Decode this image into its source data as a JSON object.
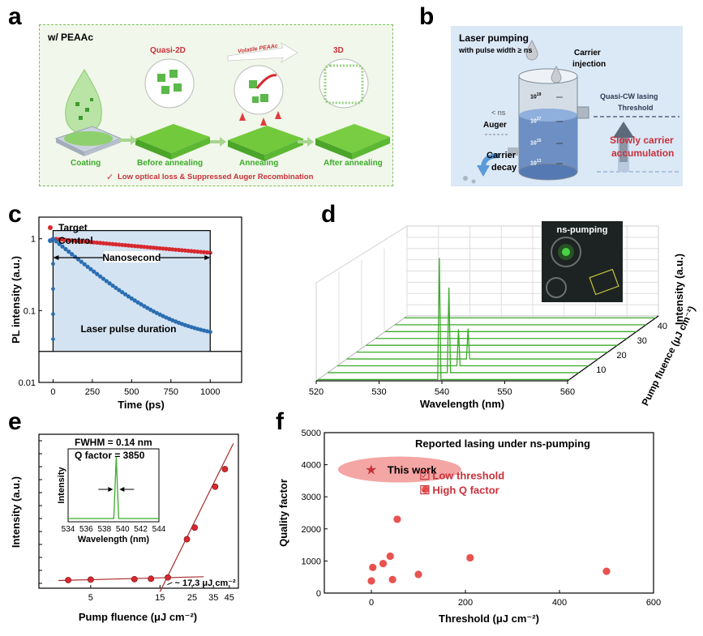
{
  "labels": {
    "a": "a",
    "b": "b",
    "c": "c",
    "d": "d",
    "e": "e",
    "f": "f"
  },
  "panel_a": {
    "header": "w/ PEAAc",
    "stages_top": [
      "Quasi-2D",
      "3D"
    ],
    "volatile": "Volatile PEAAc",
    "stages_bottom": [
      "Coating",
      "Before annealing",
      "Annealing",
      "After annealing"
    ],
    "footer": "Low optical loss & Suppressed Auger Recombination",
    "check": "✓"
  },
  "panel_b": {
    "title": "Laser pumping",
    "subtitle": "with pulse width ≥ ns",
    "carrier_injection": [
      "Carrier",
      "injection"
    ],
    "lt_ns": "< ns",
    "auger": "Auger",
    "carrier_decay": [
      "Carrier",
      "decay"
    ],
    "quasi_cw": [
      "Quasi-CW lasing",
      "Threshold"
    ],
    "slow": [
      "Slowly carrier",
      "accumulation"
    ],
    "scale": [
      {
        "base": "10",
        "exp": "19"
      },
      {
        "base": "10",
        "exp": "17"
      },
      {
        "base": "10",
        "exp": "15"
      },
      {
        "base": "10",
        "exp": "13"
      }
    ]
  },
  "panel_c": {
    "chart_data": {
      "type": "scatter",
      "xlabel": "Time (ps)",
      "ylabel": "PL intensity (a.u.)",
      "xlim": [
        -90,
        1200
      ],
      "ylim": [
        0.01,
        2
      ],
      "yscale": "log",
      "xticks": [
        "0",
        "250",
        "500",
        "750",
        "1000"
      ],
      "yticks": [
        "0.01",
        "0.1",
        "1"
      ],
      "legend": [
        "Target",
        "Control"
      ],
      "annotation_nanosecond": "Nanosecond",
      "annotation_pulse": "Laser pulse duration",
      "series": [
        {
          "name": "Target",
          "color": "#d7282f",
          "tau_ps": 2200,
          "floor": 0.01
        },
        {
          "name": "Control",
          "color": "#2a6eb3",
          "tau_ps": 230,
          "floor": 0.038
        }
      ],
      "pulse_level": 1.3,
      "baseline": 0.027
    }
  },
  "panel_d": {
    "chart_data": {
      "type": "line",
      "xlabel": "Wavelength (nm)",
      "ylabel": "Intensity (a.u.)",
      "zlabel": "Pump fluence (μJ cm⁻²)",
      "xticks": [
        "520",
        "530",
        "540",
        "550",
        "560"
      ],
      "zticks": [
        "10",
        "20",
        "30",
        "40"
      ],
      "inset_label": "ns-pumping",
      "peak_nm": 539.3,
      "series_peaks": [
        0,
        0,
        0,
        0,
        0,
        0,
        0.25,
        0.3,
        0.7,
        1.0
      ],
      "color": "#3cab2a"
    }
  },
  "panel_e": {
    "chart_data": {
      "type": "scatter",
      "xlabel": "Pump fluence (μJ cm⁻²)",
      "ylabel": "Intensity (a.u.)",
      "xscale": "log",
      "yscale": "log",
      "xticks": [
        "5",
        "15",
        "25",
        "35",
        "45"
      ],
      "threshold": "~ 17.3 μJ cm⁻²",
      "x": [
        3.5,
        5,
        10,
        13,
        17,
        23,
        26,
        36,
        42
      ],
      "y": [
        1.0,
        1.02,
        1.04,
        1.06,
        1.12,
        6,
        10,
        60,
        130
      ],
      "inset": {
        "xlabel": "Wavelength (nm)",
        "ylabel": "Intensity",
        "xticks": [
          "534",
          "536",
          "538",
          "540",
          "542",
          "544"
        ],
        "fwhm": "FWHM = 0.14 nm",
        "q": "Q factor = 3850",
        "peak": 539.3
      }
    }
  },
  "panel_f": {
    "chart_data": {
      "type": "scatter",
      "title": "Reported lasing under ns-pumping",
      "xlabel": "Threshold (μJ cm⁻²)",
      "ylabel": "Quality factor",
      "xlim": [
        -100,
        600
      ],
      "ylim": [
        0,
        5000
      ],
      "xticks": [
        "0",
        "200",
        "400",
        "600"
      ],
      "yticks": [
        "0",
        "1000",
        "2000",
        "3000",
        "4000",
        "5000"
      ],
      "x": [
        0,
        3,
        25,
        40,
        45,
        55,
        100,
        115,
        210,
        500
      ],
      "y": [
        380,
        800,
        920,
        1150,
        420,
        2300,
        580,
        3230,
        1100,
        680
      ],
      "this_work_label": "This work",
      "this_work": {
        "x": 10,
        "y": 3850
      },
      "notes": [
        "Low threshold",
        "High Q factor"
      ],
      "point_color": "#e8524f"
    }
  }
}
